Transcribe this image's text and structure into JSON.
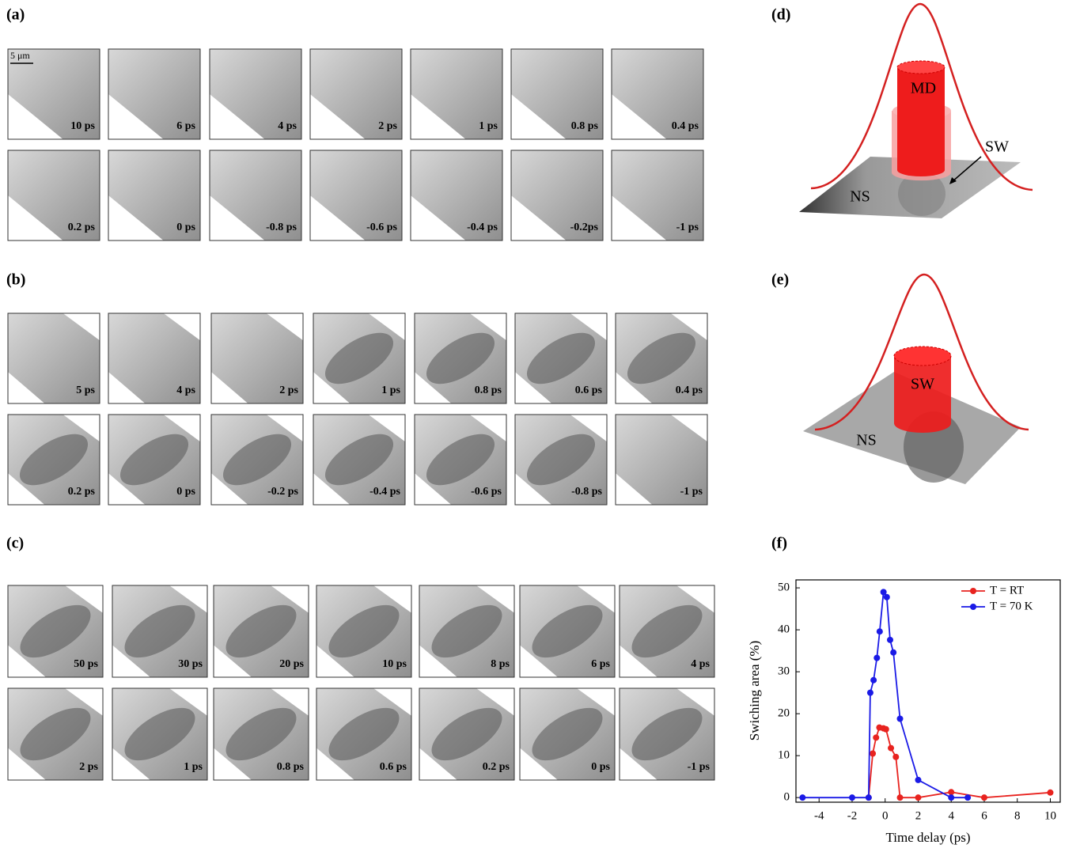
{
  "panels": {
    "a": {
      "label": "(a)",
      "scale_bar": "5 μm",
      "frames": [
        "10 ps",
        "6 ps",
        "4 ps",
        "2 ps",
        "1 ps",
        "0.8 ps",
        "0.4 ps",
        "0.2 ps",
        "0 ps",
        "-0.8 ps",
        "-0.6 ps",
        "-0.4 ps",
        "-0.2ps",
        "-1 ps"
      ]
    },
    "b": {
      "label": "(b)",
      "frames": [
        "5 ps",
        "4 ps",
        "2 ps",
        "1 ps",
        "0.8 ps",
        "0.6 ps",
        "0.4 ps",
        "0.2 ps",
        "0 ps",
        "-0.2 ps",
        "-0.4 ps",
        "-0.6 ps",
        "-0.8 ps",
        "-1 ps"
      ]
    },
    "c": {
      "label": "(c)",
      "frames": [
        "50 ps",
        "30 ps",
        "20 ps",
        "10 ps",
        "8 ps",
        "6 ps",
        "4 ps",
        "2 ps",
        "1 ps",
        "0.8 ps",
        "0.6 ps",
        "0.2 ps",
        "0 ps",
        "-1 ps"
      ]
    }
  },
  "diagrams": {
    "d": {
      "label": "(d)",
      "cylinder": "MD",
      "ring": "SW",
      "surface": "NS"
    },
    "e": {
      "label": "(e)",
      "cylinder": "SW",
      "surface": "NS"
    }
  },
  "chart_data": {
    "type": "line",
    "panel_label": "(f)",
    "xlabel": "Time delay (ps)",
    "ylabel": "Swiching area (%)",
    "xlim": [
      -5.4,
      10.6
    ],
    "xticks": [
      -4,
      -2,
      0,
      2,
      4,
      6,
      8,
      10
    ],
    "ylim": [
      -1.1,
      51.9
    ],
    "yticks": [
      0,
      10,
      20,
      30,
      40,
      50
    ],
    "legend": "upper right",
    "series": [
      {
        "name": "T =  RT",
        "color": "#e8231f",
        "x": [
          -1,
          -0.75,
          -0.55,
          -0.35,
          -0.1,
          0.05,
          0.35,
          0.65,
          0.9,
          2,
          4,
          6,
          10
        ],
        "values": [
          0,
          10.5,
          14.3,
          16.7,
          16.5,
          16.3,
          11.8,
          9.7,
          0,
          0,
          1.3,
          0,
          1.2
        ]
      },
      {
        "name": "T = 70 K",
        "color": "#1a1ae6",
        "x": [
          -5,
          -2,
          -1,
          -0.9,
          -0.7,
          -0.5,
          -0.33,
          -0.1,
          0.1,
          0.3,
          0.5,
          0.9,
          2,
          4,
          5
        ],
        "values": [
          0,
          0,
          0,
          25,
          28,
          33.3,
          39.6,
          49,
          47.8,
          37.6,
          34.6,
          18.8,
          4.2,
          0,
          0
        ]
      }
    ]
  }
}
